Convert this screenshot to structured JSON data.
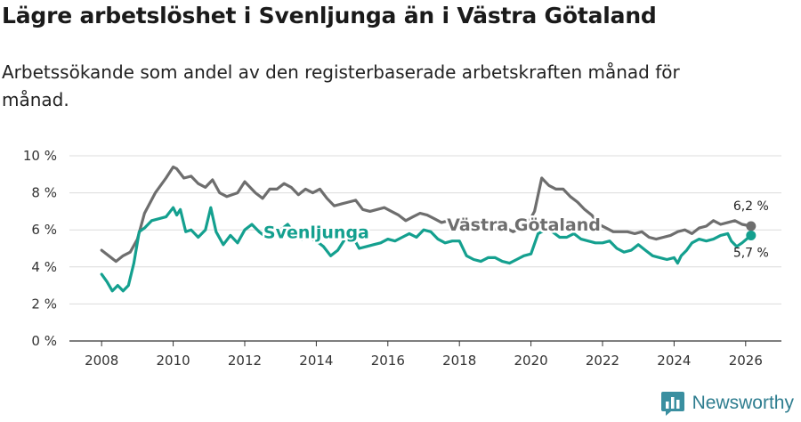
{
  "title": "Lägre arbetslöshet i Svenljunga än i Västra Götaland",
  "subtitle": "Arbetssökande som andel av den registerbaserade arbetskraften månad för månad.",
  "brand": {
    "name": "Newsworthy",
    "icon": "newsworthy-logo-icon",
    "color": "#3a8fa0"
  },
  "chart_data": {
    "type": "line",
    "x_range": [
      2007.1,
      2027.0
    ],
    "ylim": [
      0,
      10
    ],
    "y_ticks": [
      0,
      2,
      4,
      6,
      8,
      10
    ],
    "y_tick_labels": [
      "0 %",
      "2 %",
      "4 %",
      "6 %",
      "8 %",
      "10 %"
    ],
    "x_ticks": [
      2008,
      2010,
      2012,
      2014,
      2016,
      2018,
      2020,
      2022,
      2024,
      2026
    ],
    "x_tick_labels": [
      "2008",
      "2010",
      "2012",
      "2014",
      "2016",
      "2018",
      "2020",
      "2022",
      "2024",
      "2026"
    ],
    "grid": "horizontal",
    "series": [
      {
        "name": "Västra Götaland",
        "color": "#6e6e6e",
        "last_label": "6,2 %",
        "x": [
          2008.0,
          2008.2,
          2008.4,
          2008.6,
          2008.8,
          2009.0,
          2009.2,
          2009.5,
          2009.8,
          2010.0,
          2010.1,
          2010.3,
          2010.5,
          2010.7,
          2010.9,
          2011.1,
          2011.3,
          2011.5,
          2011.8,
          2012.0,
          2012.3,
          2012.5,
          2012.7,
          2012.9,
          2013.1,
          2013.3,
          2013.5,
          2013.7,
          2013.9,
          2014.1,
          2014.3,
          2014.5,
          2014.7,
          2014.9,
          2015.1,
          2015.3,
          2015.5,
          2015.7,
          2015.9,
          2016.1,
          2016.3,
          2016.5,
          2016.7,
          2016.9,
          2017.1,
          2017.3,
          2017.5,
          2017.7,
          2017.9,
          2018.1,
          2018.3,
          2018.5,
          2018.7,
          2018.9,
          2019.1,
          2019.3,
          2019.5,
          2019.7,
          2019.9,
          2020.1,
          2020.3,
          2020.5,
          2020.7,
          2020.9,
          2021.1,
          2021.3,
          2021.5,
          2021.7,
          2021.9,
          2022.1,
          2022.3,
          2022.5,
          2022.7,
          2022.9,
          2023.1,
          2023.3,
          2023.5,
          2023.7,
          2023.9,
          2024.1,
          2024.3,
          2024.5,
          2024.7,
          2024.9,
          2025.1,
          2025.3,
          2025.5,
          2025.7,
          2025.9,
          2026.15
        ],
        "values": [
          4.9,
          4.6,
          4.3,
          4.6,
          4.8,
          5.5,
          6.9,
          8.0,
          8.8,
          9.4,
          9.3,
          8.8,
          8.9,
          8.5,
          8.3,
          8.7,
          8.0,
          7.8,
          8.0,
          8.6,
          8.0,
          7.7,
          8.2,
          8.2,
          8.5,
          8.3,
          7.9,
          8.2,
          8.0,
          8.2,
          7.7,
          7.3,
          7.4,
          7.5,
          7.6,
          7.1,
          7.0,
          7.1,
          7.2,
          7.0,
          6.8,
          6.5,
          6.7,
          6.9,
          6.8,
          6.6,
          6.4,
          6.5,
          6.3,
          6.5,
          6.3,
          6.2,
          6.3,
          6.1,
          6.0,
          6.1,
          5.9,
          6.1,
          6.3,
          7.0,
          8.8,
          8.4,
          8.2,
          8.2,
          7.8,
          7.5,
          7.1,
          6.8,
          6.3,
          6.1,
          5.9,
          5.9,
          5.9,
          5.8,
          5.9,
          5.6,
          5.5,
          5.6,
          5.7,
          5.9,
          6.0,
          5.8,
          6.1,
          6.2,
          6.5,
          6.3,
          6.4,
          6.5,
          6.3,
          6.2
        ]
      },
      {
        "name": "Svenljunga",
        "color": "#14a08f",
        "last_label": "5,7 %",
        "x": [
          2008.0,
          2008.15,
          2008.3,
          2008.45,
          2008.6,
          2008.75,
          2008.9,
          2009.05,
          2009.2,
          2009.4,
          2009.6,
          2009.8,
          2010.0,
          2010.1,
          2010.2,
          2010.35,
          2010.5,
          2010.7,
          2010.9,
          2011.05,
          2011.2,
          2011.4,
          2011.6,
          2011.8,
          2012.0,
          2012.2,
          2012.4,
          2012.6,
          2012.8,
          2013.0,
          2013.2,
          2013.4,
          2013.6,
          2013.8,
          2014.0,
          2014.2,
          2014.4,
          2014.6,
          2014.8,
          2015.0,
          2015.2,
          2015.4,
          2015.6,
          2015.8,
          2016.0,
          2016.2,
          2016.4,
          2016.6,
          2016.8,
          2017.0,
          2017.2,
          2017.4,
          2017.6,
          2017.8,
          2018.0,
          2018.2,
          2018.4,
          2018.6,
          2018.8,
          2019.0,
          2019.2,
          2019.4,
          2019.6,
          2019.8,
          2020.0,
          2020.2,
          2020.4,
          2020.6,
          2020.8,
          2021.0,
          2021.2,
          2021.4,
          2021.6,
          2021.8,
          2022.0,
          2022.2,
          2022.4,
          2022.6,
          2022.8,
          2023.0,
          2023.2,
          2023.4,
          2023.6,
          2023.8,
          2024.0,
          2024.1,
          2024.2,
          2024.35,
          2024.5,
          2024.7,
          2024.9,
          2025.1,
          2025.3,
          2025.5,
          2025.6,
          2025.75,
          2025.9,
          2026.15
        ],
        "values": [
          3.6,
          3.2,
          2.7,
          3.0,
          2.7,
          3.0,
          4.2,
          5.9,
          6.1,
          6.5,
          6.6,
          6.7,
          7.2,
          6.8,
          7.1,
          5.9,
          6.0,
          5.6,
          6.0,
          7.2,
          5.9,
          5.2,
          5.7,
          5.3,
          6.0,
          6.3,
          5.9,
          5.6,
          6.1,
          6.0,
          6.3,
          5.8,
          5.5,
          5.6,
          5.4,
          5.1,
          4.6,
          4.9,
          5.5,
          5.7,
          5.0,
          5.1,
          5.2,
          5.3,
          5.5,
          5.4,
          5.6,
          5.8,
          5.6,
          6.0,
          5.9,
          5.5,
          5.3,
          5.4,
          5.4,
          4.6,
          4.4,
          4.3,
          4.5,
          4.5,
          4.3,
          4.2,
          4.4,
          4.6,
          4.7,
          5.8,
          6.0,
          5.9,
          5.6,
          5.6,
          5.8,
          5.5,
          5.4,
          5.3,
          5.3,
          5.4,
          5.0,
          4.8,
          4.9,
          5.2,
          4.9,
          4.6,
          4.5,
          4.4,
          4.5,
          4.2,
          4.6,
          4.9,
          5.3,
          5.5,
          5.4,
          5.5,
          5.7,
          5.8,
          5.4,
          5.1,
          5.3,
          5.7
        ]
      }
    ]
  }
}
